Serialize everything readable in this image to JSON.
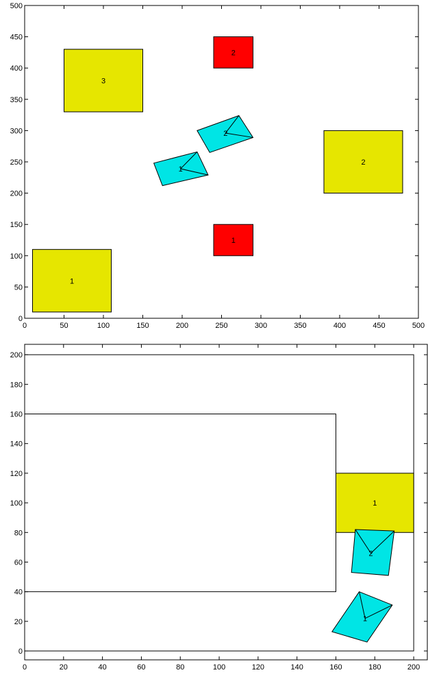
{
  "chart_data": [
    {
      "type": "scatter",
      "title": "",
      "xlabel": "",
      "ylabel": "",
      "xlim": [
        0,
        500
      ],
      "ylim": [
        0,
        500
      ],
      "x_ticks": [
        0,
        50,
        100,
        150,
        200,
        250,
        300,
        350,
        400,
        450,
        500
      ],
      "y_ticks": [
        0,
        50,
        100,
        150,
        200,
        250,
        300,
        350,
        400,
        450,
        500
      ],
      "grid": false,
      "colors": {
        "yellow": "#e6e600",
        "red": "#ff0000",
        "cyan": "#00e5e5"
      },
      "rects": [
        {
          "label": "1",
          "color": "yellow",
          "x": [
            10,
            110
          ],
          "y": [
            10,
            110
          ]
        },
        {
          "label": "2",
          "color": "yellow",
          "x": [
            380,
            480
          ],
          "y": [
            200,
            300
          ]
        },
        {
          "label": "3",
          "color": "yellow",
          "x": [
            50,
            150
          ],
          "y": [
            330,
            430
          ]
        },
        {
          "label": "1",
          "color": "red",
          "x": [
            240,
            290
          ],
          "y": [
            100,
            150
          ]
        },
        {
          "label": "2",
          "color": "red",
          "x": [
            240,
            290
          ],
          "y": [
            400,
            450
          ]
        }
      ],
      "polys": [
        {
          "label": "1",
          "color": "cyan",
          "points": [
            [
              164,
              248
            ],
            [
              219,
              266
            ],
            [
              233,
              229
            ],
            [
              175,
              212
            ]
          ],
          "apex": [
            219,
            266
          ],
          "center": [
            198,
            239
          ],
          "line_end": [
            233,
            229
          ]
        },
        {
          "label": "2",
          "color": "cyan",
          "points": [
            [
              219,
              300
            ],
            [
              272,
              324
            ],
            [
              290,
              289
            ],
            [
              235,
              265
            ]
          ],
          "apex": [
            272,
            324
          ],
          "center": [
            255,
            296
          ],
          "line_end": [
            290,
            289
          ]
        }
      ]
    },
    {
      "type": "scatter",
      "title": "",
      "xlabel": "",
      "ylabel": "",
      "xlim": [
        0,
        207
      ],
      "ylim": [
        -6,
        207
      ],
      "x_ticks": [
        0,
        20,
        40,
        60,
        80,
        100,
        120,
        140,
        160,
        180,
        200
      ],
      "y_ticks": [
        0,
        20,
        40,
        60,
        80,
        100,
        120,
        140,
        160,
        180,
        200
      ],
      "grid": false,
      "colors": {
        "yellow": "#e6e600",
        "cyan": "#00e5e5"
      },
      "outlines": [
        {
          "x": [
            0,
            200
          ],
          "y": [
            0,
            200
          ]
        },
        {
          "x": [
            0,
            160
          ],
          "y": [
            40,
            160
          ]
        }
      ],
      "rects": [
        {
          "label": "1",
          "color": "yellow",
          "x": [
            160,
            200
          ],
          "y": [
            80,
            120
          ]
        }
      ],
      "polys": [
        {
          "label": "2",
          "color": "cyan",
          "points": [
            [
              170,
              82
            ],
            [
              190,
              81
            ],
            [
              187,
              51
            ],
            [
              168,
              53
            ]
          ],
          "apex": [
            170,
            82
          ],
          "center": [
            178,
            66
          ],
          "line_end": [
            190,
            81
          ]
        },
        {
          "label": "1",
          "color": "cyan",
          "points": [
            [
              172,
              40
            ],
            [
              189,
              31
            ],
            [
              176,
              6
            ],
            [
              158,
              13
            ]
          ],
          "apex": [
            172,
            40
          ],
          "center": [
            175,
            22
          ],
          "line_end": [
            189,
            31
          ]
        }
      ]
    }
  ]
}
